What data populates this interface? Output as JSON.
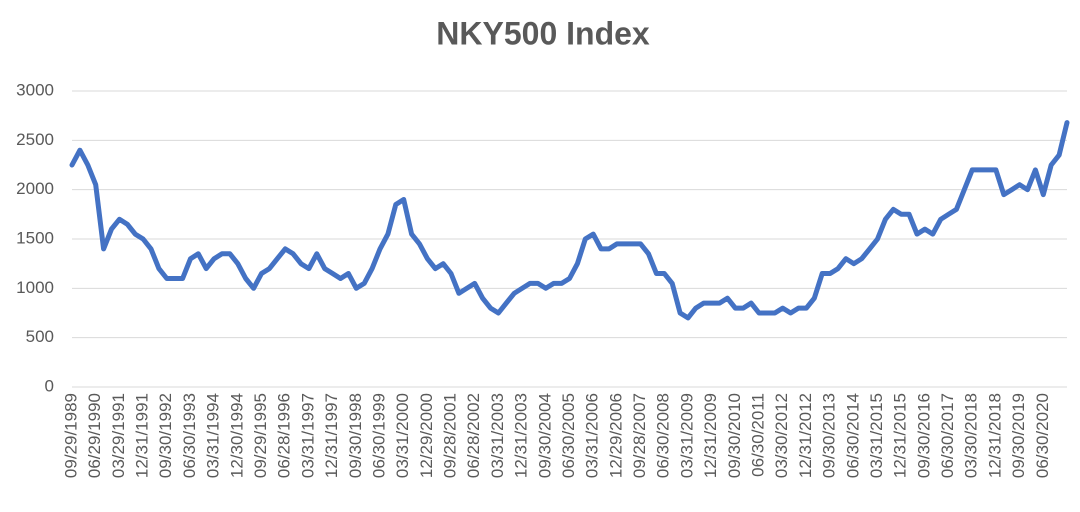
{
  "chart_data": {
    "type": "line",
    "title": "NKY500 Index",
    "categories": [
      "09/29/1989",
      null,
      null,
      "06/29/1990",
      null,
      null,
      "03/29/1991",
      null,
      null,
      "12/31/1991",
      null,
      null,
      "09/30/1992",
      null,
      null,
      "06/30/1993",
      null,
      null,
      "03/31/1994",
      null,
      null,
      "12/30/1994",
      null,
      null,
      "09/29/1995",
      null,
      null,
      "06/28/1996",
      null,
      null,
      "03/31/1997",
      null,
      null,
      "12/31/1997",
      null,
      null,
      "09/30/1998",
      null,
      null,
      "06/30/1999",
      null,
      null,
      "03/31/2000",
      null,
      null,
      "12/29/2000",
      null,
      null,
      "09/28/2001",
      null,
      null,
      "06/28/2002",
      null,
      null,
      "03/31/2003",
      null,
      null,
      "12/31/2003",
      null,
      null,
      "09/30/2004",
      null,
      null,
      "06/30/2005",
      null,
      null,
      "03/31/2006",
      null,
      null,
      "12/29/2006",
      null,
      null,
      "09/28/2007",
      null,
      null,
      "06/30/2008",
      null,
      null,
      "03/31/2009",
      null,
      null,
      "12/31/2009",
      null,
      null,
      "09/30/2010",
      null,
      null,
      "06/30/2011",
      null,
      null,
      "03/30/2012",
      null,
      null,
      "12/31/2012",
      null,
      null,
      "09/30/2013",
      null,
      null,
      "06/30/2014",
      null,
      null,
      "03/31/2015",
      null,
      null,
      "12/31/2015",
      null,
      null,
      "09/30/2016",
      null,
      null,
      "06/30/2017",
      null,
      null,
      "03/30/2018",
      null,
      null,
      "12/31/2018",
      null,
      null,
      "09/30/2019",
      null,
      null,
      "06/30/2020",
      null,
      null,
      null
    ],
    "values": [
      2250,
      2400,
      2250,
      2050,
      1400,
      1600,
      1700,
      1650,
      1550,
      1500,
      1400,
      1200,
      1100,
      1100,
      1100,
      1300,
      1350,
      1200,
      1300,
      1350,
      1350,
      1250,
      1100,
      1000,
      1150,
      1200,
      1300,
      1400,
      1350,
      1250,
      1200,
      1350,
      1200,
      1150,
      1100,
      1150,
      1000,
      1050,
      1200,
      1400,
      1550,
      1850,
      1900,
      1550,
      1450,
      1300,
      1200,
      1250,
      1150,
      950,
      1000,
      1050,
      900,
      800,
      750,
      850,
      950,
      1000,
      1050,
      1050,
      1000,
      1050,
      1050,
      1100,
      1250,
      1500,
      1550,
      1400,
      1400,
      1450,
      1450,
      1450,
      1450,
      1350,
      1150,
      1150,
      1050,
      750,
      700,
      800,
      850,
      850,
      850,
      900,
      800,
      800,
      850,
      750,
      750,
      750,
      800,
      750,
      800,
      800,
      900,
      1150,
      1150,
      1200,
      1300,
      1250,
      1300,
      1400,
      1500,
      1700,
      1800,
      1750,
      1750,
      1550,
      1600,
      1550,
      1700,
      1750,
      1800,
      2000,
      2200,
      2200,
      2200,
      2200,
      1950,
      2000,
      2050,
      2000,
      2200,
      1950,
      2250,
      2350,
      2680
    ],
    "color": "#4472c4",
    "ylim": [
      0,
      3000
    ],
    "yticks": [
      0,
      500,
      1000,
      1500,
      2000,
      2500,
      3000
    ],
    "grid": true
  }
}
